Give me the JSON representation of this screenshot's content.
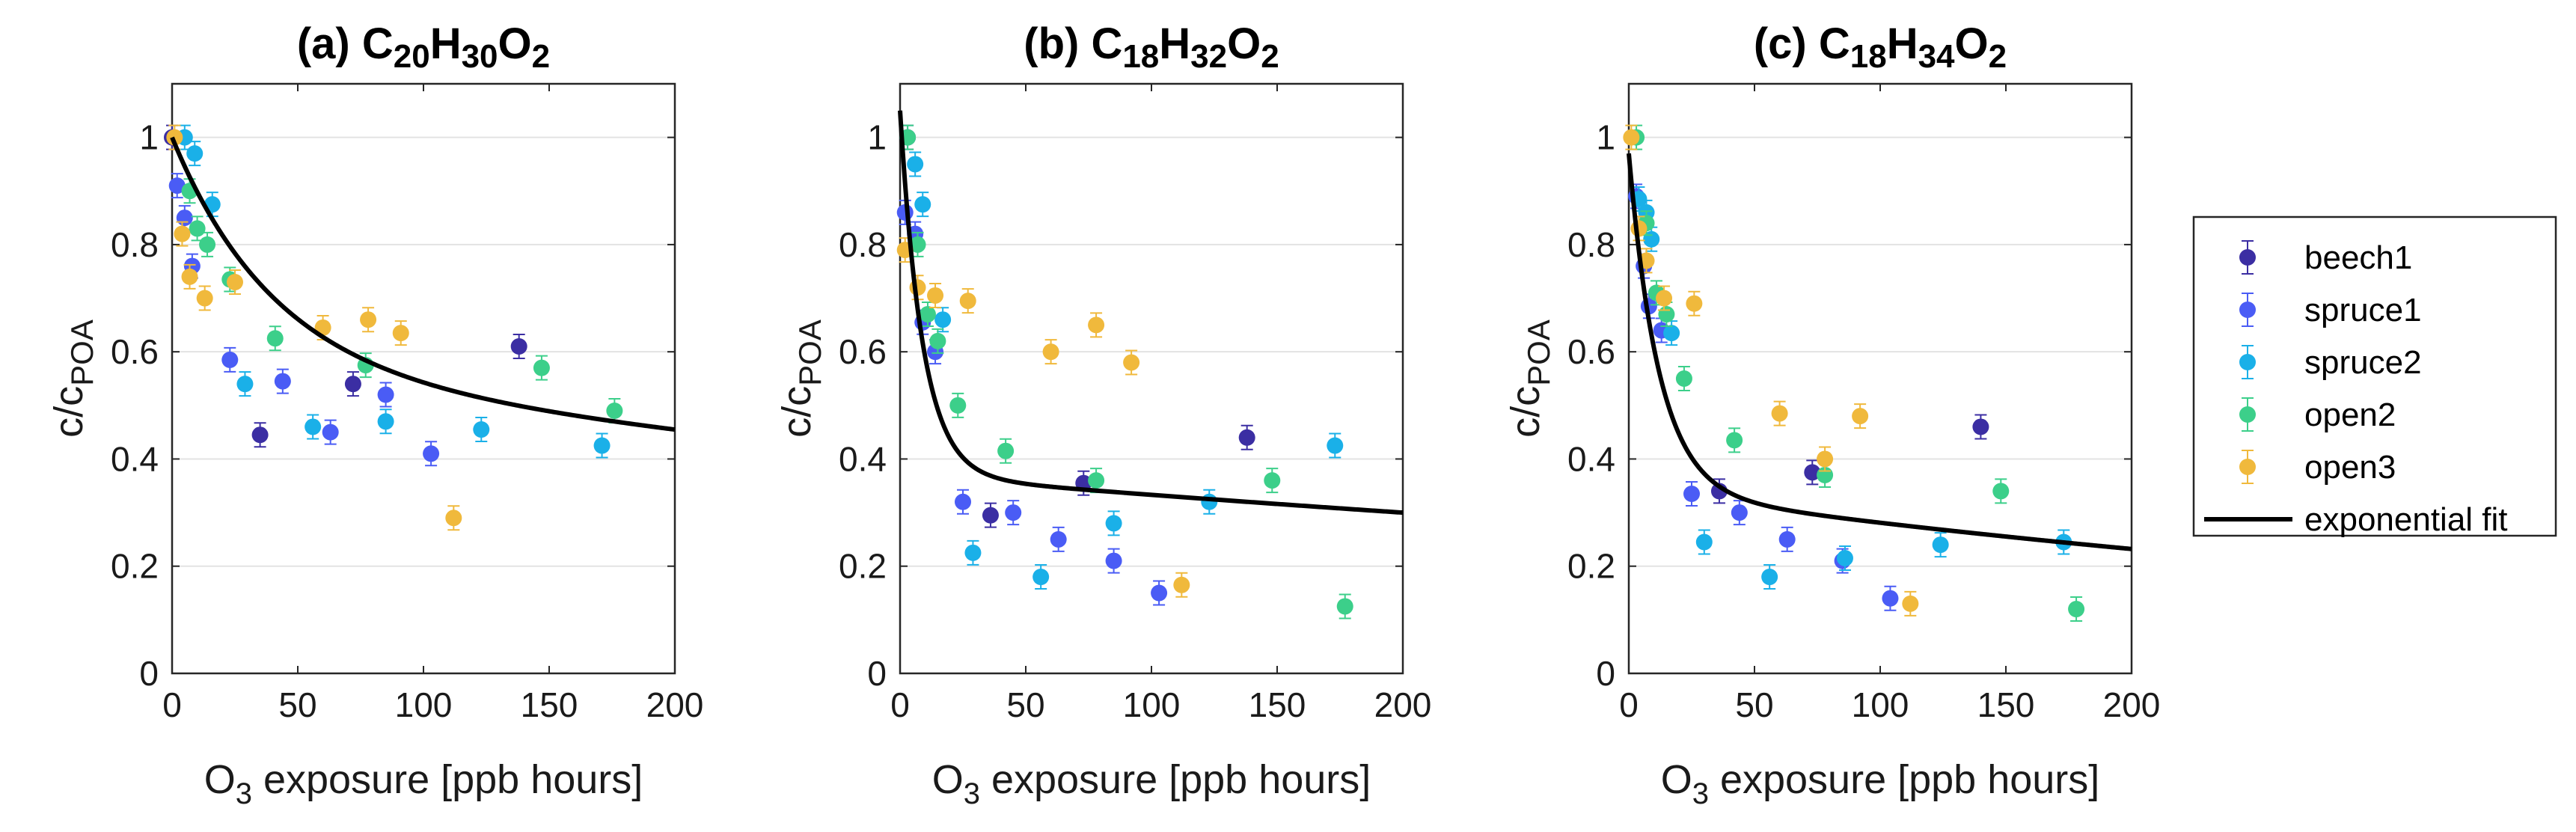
{
  "legend": {
    "entries": [
      {
        "key": "beech1",
        "label": "beech1",
        "color": "#3b2ea3"
      },
      {
        "key": "spruce1",
        "label": "spruce1",
        "color": "#4a5cf5"
      },
      {
        "key": "spruce2",
        "label": "spruce2",
        "color": "#1ab0e8"
      },
      {
        "key": "open2",
        "label": "open2",
        "color": "#3ccf8a"
      },
      {
        "key": "open3",
        "label": "open3",
        "color": "#f0b93c"
      }
    ],
    "fit_label": "exponential fit",
    "fit_color": "#000000"
  },
  "chart_data": [
    {
      "type": "scatter",
      "title": "(a) C20H30O2",
      "title_parts": {
        "prefix": "(a) ",
        "formula": [
          [
            "C",
            "20"
          ],
          [
            "H",
            "30"
          ],
          [
            "O",
            "2"
          ]
        ]
      },
      "xlabel": {
        "main": "O",
        "sub": "3",
        "rest": " exposure [ppb hours]"
      },
      "ylabel": {
        "main": "c/c",
        "sub": "POA"
      },
      "xlim": [
        0,
        200
      ],
      "ylim": [
        0,
        1.1
      ],
      "xticks": [
        0,
        50,
        100,
        150,
        200
      ],
      "yticks": [
        0,
        0.2,
        0.4,
        0.6,
        0.8,
        1
      ],
      "ytick_labels": [
        "0",
        "0.2",
        "0.4",
        "0.6",
        "0.8",
        "1"
      ],
      "grid": "horizontal",
      "fit": {
        "a": 0.43,
        "b": 40,
        "c": 0.57,
        "d": -0.00116
      },
      "series": [
        {
          "key": "beech1",
          "x": [
            0,
            35,
            72,
            138
          ],
          "y": [
            1.0,
            0.445,
            0.54,
            0.61
          ]
        },
        {
          "key": "spruce1",
          "x": [
            2,
            5,
            8,
            23,
            44,
            63,
            85,
            103
          ],
          "y": [
            0.91,
            0.85,
            0.76,
            0.585,
            0.545,
            0.45,
            0.52,
            0.41
          ]
        },
        {
          "key": "spruce2",
          "x": [
            5,
            9,
            16,
            29,
            56,
            85,
            123,
            171
          ],
          "y": [
            1.0,
            0.97,
            0.875,
            0.54,
            0.46,
            0.47,
            0.455,
            0.425
          ]
        },
        {
          "key": "open2",
          "x": [
            7,
            10,
            14,
            23,
            41,
            77,
            147,
            176
          ],
          "y": [
            0.9,
            0.83,
            0.8,
            0.735,
            0.625,
            0.575,
            0.57,
            0.49
          ]
        },
        {
          "key": "open3",
          "x": [
            1,
            4,
            7,
            13,
            25,
            60,
            78,
            91,
            112
          ],
          "y": [
            1.0,
            0.82,
            0.74,
            0.7,
            0.73,
            0.645,
            0.66,
            0.635,
            0.29
          ]
        }
      ]
    },
    {
      "type": "scatter",
      "title": "(b) C18H32O2",
      "title_parts": {
        "prefix": "(b) ",
        "formula": [
          [
            "C",
            "18"
          ],
          [
            "H",
            "32"
          ],
          [
            "O",
            "2"
          ]
        ]
      },
      "xlabel": {
        "main": "O",
        "sub": "3",
        "rest": " exposure [ppb hours]"
      },
      "ylabel": {
        "main": "c/c",
        "sub": "POA"
      },
      "xlim": [
        0,
        200
      ],
      "ylim": [
        0,
        1.1
      ],
      "xticks": [
        0,
        50,
        100,
        150,
        200
      ],
      "yticks": [
        0,
        0.2,
        0.4,
        0.6,
        0.8,
        1
      ],
      "ytick_labels": [
        "0",
        "0.2",
        "0.4",
        "0.6",
        "0.8",
        "1"
      ],
      "grid": "horizontal",
      "fit": {
        "a": 0.68,
        "b": 9,
        "c": 0.37,
        "d": -0.00105
      },
      "series": [
        {
          "key": "beech1",
          "x": [
            3,
            36,
            73,
            138
          ],
          "y": [
            1.0,
            0.295,
            0.355,
            0.44
          ]
        },
        {
          "key": "spruce1",
          "x": [
            2,
            6,
            9,
            14,
            25,
            45,
            63,
            85,
            103
          ],
          "y": [
            0.86,
            0.82,
            0.655,
            0.6,
            0.32,
            0.3,
            0.25,
            0.21,
            0.15
          ]
        },
        {
          "key": "spruce2",
          "x": [
            6,
            9,
            17,
            29,
            56,
            85,
            123,
            173
          ],
          "y": [
            0.95,
            0.875,
            0.66,
            0.225,
            0.18,
            0.28,
            0.32,
            0.425
          ]
        },
        {
          "key": "open2",
          "x": [
            3,
            7,
            11,
            15,
            23,
            42,
            78,
            148,
            177
          ],
          "y": [
            1.0,
            0.8,
            0.67,
            0.62,
            0.5,
            0.415,
            0.36,
            0.36,
            0.125
          ]
        },
        {
          "key": "open3",
          "x": [
            2,
            7,
            14,
            27,
            60,
            78,
            92,
            112
          ],
          "y": [
            0.79,
            0.72,
            0.705,
            0.695,
            0.6,
            0.65,
            0.58,
            0.165
          ]
        }
      ]
    },
    {
      "type": "scatter",
      "title": "(c) C18H34O2",
      "title_parts": {
        "prefix": "(c) ",
        "formula": [
          [
            "C",
            "18"
          ],
          [
            "H",
            "34"
          ],
          [
            "O",
            "2"
          ]
        ]
      },
      "xlabel": {
        "main": "O",
        "sub": "3",
        "rest": " exposure [ppb hours]"
      },
      "ylabel": {
        "main": "c/c",
        "sub": "POA"
      },
      "xlim": [
        0,
        200
      ],
      "ylim": [
        0,
        1.1
      ],
      "xticks": [
        0,
        50,
        100,
        150,
        200
      ],
      "yticks": [
        0,
        0.2,
        0.4,
        0.6,
        0.8,
        1
      ],
      "ytick_labels": [
        "0",
        "0.2",
        "0.4",
        "0.6",
        "0.8",
        "1"
      ],
      "grid": "horizontal",
      "fit": {
        "a": 0.63,
        "b": 12,
        "c": 0.34,
        "d": -0.00191
      },
      "series": [
        {
          "key": "beech1",
          "x": [
            36,
            73,
            140
          ],
          "y": [
            0.34,
            0.375,
            0.46
          ]
        },
        {
          "key": "spruce1",
          "x": [
            3,
            6,
            8,
            13,
            25,
            44,
            63,
            85,
            104
          ],
          "y": [
            0.89,
            0.76,
            0.685,
            0.64,
            0.335,
            0.3,
            0.25,
            0.21,
            0.14
          ]
        },
        {
          "key": "spruce2",
          "x": [
            4,
            7,
            9,
            17,
            30,
            56,
            86,
            124,
            173
          ],
          "y": [
            0.885,
            0.86,
            0.81,
            0.635,
            0.245,
            0.18,
            0.215,
            0.24,
            0.245
          ]
        },
        {
          "key": "open2",
          "x": [
            3,
            7,
            11,
            15,
            22,
            42,
            78,
            148,
            178
          ],
          "y": [
            1.0,
            0.84,
            0.71,
            0.67,
            0.55,
            0.435,
            0.37,
            0.34,
            0.12
          ]
        },
        {
          "key": "open3",
          "x": [
            1,
            4,
            7,
            14,
            26,
            60,
            78,
            92,
            112
          ],
          "y": [
            1.0,
            0.83,
            0.77,
            0.7,
            0.69,
            0.485,
            0.4,
            0.48,
            0.13
          ]
        }
      ]
    }
  ]
}
